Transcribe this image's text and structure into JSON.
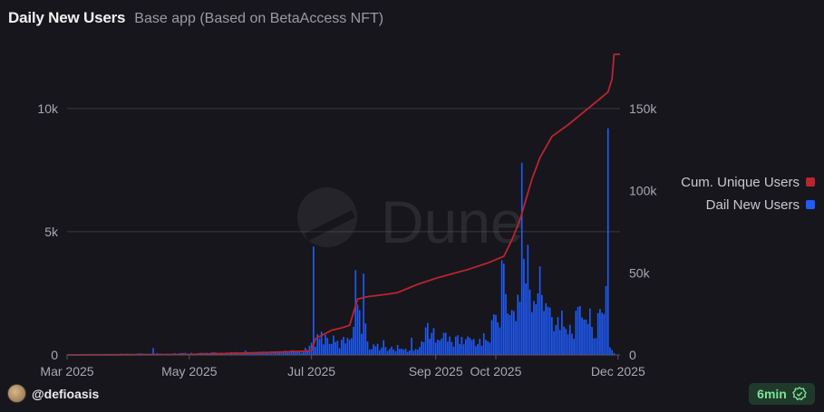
{
  "header": {
    "title": "Daily New Users",
    "subtitle": "Base app (Based on BetaAccess NFT)"
  },
  "watermark": "Dune",
  "footer": {
    "username": "@defioasis",
    "refresh_badge": "6min",
    "badge_icon": "check-badge-icon"
  },
  "chart_data": {
    "type": "bar",
    "x_ticks": [
      "Mar 2025",
      "May 2025",
      "Jul 2025",
      "Sep 2025",
      "Oct 2025",
      "Dec 2025"
    ],
    "x_tick_days": [
      0,
      61,
      122,
      184,
      214,
      275
    ],
    "y_left_ticks": [
      {
        "label": "0",
        "value": 0
      },
      {
        "label": "5k",
        "value": 5000
      },
      {
        "label": "10k",
        "value": 10000
      }
    ],
    "y_right_ticks": [
      {
        "label": "0",
        "value": 0
      },
      {
        "label": "50k",
        "value": 50000
      },
      {
        "label": "100k",
        "value": 100000
      },
      {
        "label": "150k",
        "value": 150000
      }
    ],
    "ylim_left": [
      0,
      12200
    ],
    "ylim_right": [
      0,
      183000
    ],
    "colors": {
      "bars": "#1f5cff",
      "line": "#b8262e",
      "grid": "#3a3a40"
    },
    "legend_position": "right",
    "series": [
      {
        "name": "Cum. Unique Users",
        "type": "line",
        "axis": "right",
        "points": [
          [
            0,
            0
          ],
          [
            60,
            300
          ],
          [
            100,
            1500
          ],
          [
            122,
            2500
          ],
          [
            124,
            10000
          ],
          [
            132,
            15000
          ],
          [
            137,
            16500
          ],
          [
            141,
            18000
          ],
          [
            145,
            34000
          ],
          [
            150,
            35500
          ],
          [
            160,
            37000
          ],
          [
            165,
            38000
          ],
          [
            175,
            43000
          ],
          [
            185,
            47000
          ],
          [
            200,
            52000
          ],
          [
            210,
            56000
          ],
          [
            218,
            60000
          ],
          [
            222,
            70000
          ],
          [
            226,
            82000
          ],
          [
            232,
            107000
          ],
          [
            236,
            120000
          ],
          [
            242,
            133000
          ],
          [
            250,
            140000
          ],
          [
            258,
            148000
          ],
          [
            266,
            156000
          ],
          [
            270,
            160000
          ],
          [
            272,
            168000
          ],
          [
            273,
            183000
          ],
          [
            276,
            183000
          ]
        ]
      },
      {
        "name": "Dail New Users",
        "type": "bar",
        "axis": "left",
        "anchors": [
          [
            0,
            0
          ],
          [
            40,
            50
          ],
          [
            100,
            100
          ],
          [
            118,
            150
          ],
          [
            122,
            350
          ],
          [
            123,
            4400
          ],
          [
            124,
            600
          ],
          [
            126,
            800
          ],
          [
            128,
            700
          ],
          [
            132,
            600
          ],
          [
            136,
            400
          ],
          [
            142,
            900
          ],
          [
            144,
            2500
          ],
          [
            146,
            2600
          ],
          [
            147,
            1400
          ],
          [
            148,
            3300
          ],
          [
            149,
            1300
          ],
          [
            150,
            400
          ],
          [
            165,
            200
          ],
          [
            176,
            250
          ],
          [
            177,
            500
          ],
          [
            178,
            900
          ],
          [
            179,
            1300
          ],
          [
            180,
            600
          ],
          [
            185,
            1000
          ],
          [
            190,
            600
          ],
          [
            195,
            500
          ],
          [
            200,
            700
          ],
          [
            205,
            500
          ],
          [
            210,
            700
          ],
          [
            214,
            1500
          ],
          [
            216,
            2000
          ],
          [
            218,
            3700
          ],
          [
            219,
            2200
          ],
          [
            221,
            1600
          ],
          [
            224,
            1400
          ],
          [
            226,
            3500
          ],
          [
            227,
            7800
          ],
          [
            228,
            3000
          ],
          [
            230,
            3400
          ],
          [
            232,
            2200
          ],
          [
            234,
            1800
          ],
          [
            236,
            2900
          ],
          [
            238,
            1600
          ],
          [
            240,
            1700
          ],
          [
            244,
            1400
          ],
          [
            248,
            1200
          ],
          [
            252,
            1000
          ],
          [
            256,
            1500
          ],
          [
            258,
            2000
          ],
          [
            260,
            1400
          ],
          [
            264,
            1100
          ],
          [
            266,
            1300
          ],
          [
            268,
            1500
          ],
          [
            269,
            2500
          ],
          [
            270,
            9200
          ],
          [
            271,
            400
          ],
          [
            272,
            200
          ],
          [
            273,
            100
          ]
        ],
        "spikes": [
          [
            43,
            280
          ],
          [
            89,
            180
          ],
          [
            123,
            4400
          ],
          [
            148,
            3300
          ],
          [
            158,
            600
          ],
          [
            165,
            400
          ],
          [
            172,
            700
          ],
          [
            180,
            1300
          ],
          [
            188,
            900
          ],
          [
            195,
            800
          ],
          [
            201,
            700
          ],
          [
            211,
            500
          ],
          [
            218,
            3700
          ],
          [
            227,
            7800
          ],
          [
            235,
            2500
          ],
          [
            239,
            2100
          ],
          [
            247,
            1800
          ],
          [
            265,
            1700
          ],
          [
            270,
            9200
          ]
        ]
      }
    ]
  }
}
